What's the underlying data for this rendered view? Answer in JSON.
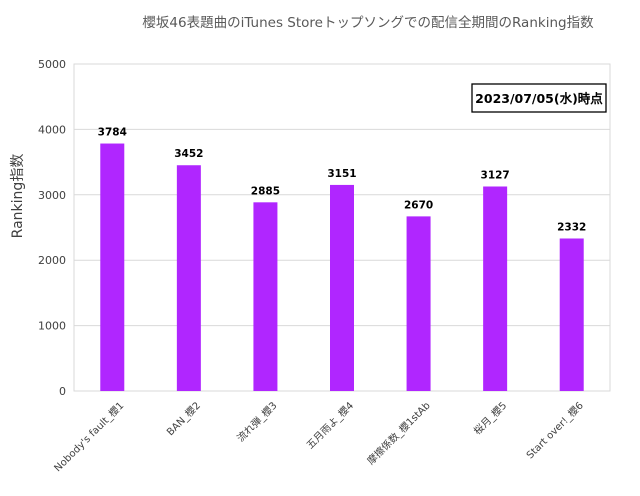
{
  "chart_data": {
    "type": "bar",
    "title": "櫻坂46表題曲のiTunes Storeトップソングでの配信全期間のRanking指数",
    "annotation": "2023/07/05(水)時点",
    "xlabel": "",
    "ylabel": "Ranking指数",
    "ylim": [
      0,
      5000
    ],
    "yticks": [
      0,
      1000,
      2000,
      3000,
      4000,
      5000
    ],
    "grid": true,
    "legend": "none",
    "bar_color": "#b026ff",
    "categories": [
      "Nobody's fault_櫻1",
      "BAN_櫻2",
      "流れ弾_櫻3",
      "五月雨よ_櫻4",
      "摩擦係数_櫻1stAb",
      "桜月_櫻5",
      "Start over!_櫻6"
    ],
    "values": [
      3784,
      3452,
      2885,
      3151,
      2670,
      3127,
      2332
    ]
  }
}
